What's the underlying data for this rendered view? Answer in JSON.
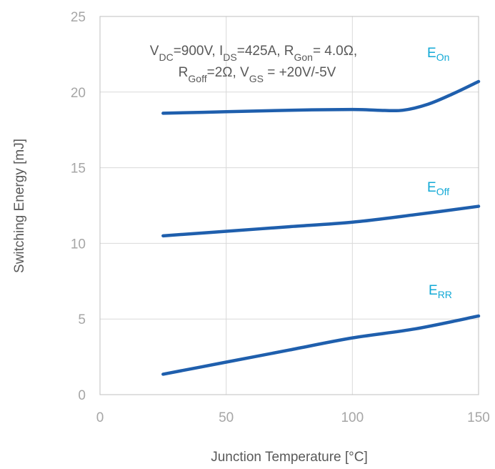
{
  "colors": {
    "line": "#1f5fad",
    "label": "#12a9d6"
  },
  "chart_data": {
    "type": "line",
    "title": "",
    "xlabel": "Junction Temperature [°C]",
    "ylabel": "Switching Energy [mJ]",
    "xlim": [
      0,
      150
    ],
    "ylim": [
      0,
      25
    ],
    "xticks": [
      0,
      50,
      100,
      150
    ],
    "yticks": [
      0,
      5,
      10,
      15,
      20,
      25
    ],
    "grid": true,
    "annotation": {
      "line1": [
        {
          "t": "V"
        },
        {
          "t": "DC",
          "sub": true
        },
        {
          "t": "=900V, I"
        },
        {
          "t": "DS",
          "sub": true
        },
        {
          "t": "=425A, R"
        },
        {
          "t": "Gon",
          "sub": true
        },
        {
          "t": "= 4.0Ω,"
        }
      ],
      "line2": [
        {
          "t": "R"
        },
        {
          "t": "Goff",
          "sub": true
        },
        {
          "t": "=2Ω, V"
        },
        {
          "t": "GS",
          "sub": true
        },
        {
          "t": " = +20V/-5V"
        }
      ]
    },
    "series": [
      {
        "name": "On",
        "label_main": "E",
        "label_sub": "On",
        "x": [
          25,
          50,
          75,
          100,
          110,
          120,
          130,
          140,
          150
        ],
        "y": [
          18.6,
          18.7,
          18.8,
          18.85,
          18.8,
          18.8,
          19.2,
          19.9,
          20.7
        ]
      },
      {
        "name": "Off",
        "label_main": "E",
        "label_sub": "Off",
        "x": [
          25,
          50,
          75,
          100,
          125,
          150
        ],
        "y": [
          10.5,
          10.8,
          11.1,
          11.4,
          11.9,
          12.45
        ]
      },
      {
        "name": "RR",
        "label_main": "E",
        "label_sub": "RR",
        "x": [
          25,
          50,
          75,
          100,
          125,
          150
        ],
        "y": [
          1.35,
          2.15,
          2.95,
          3.75,
          4.35,
          5.2
        ]
      }
    ]
  }
}
